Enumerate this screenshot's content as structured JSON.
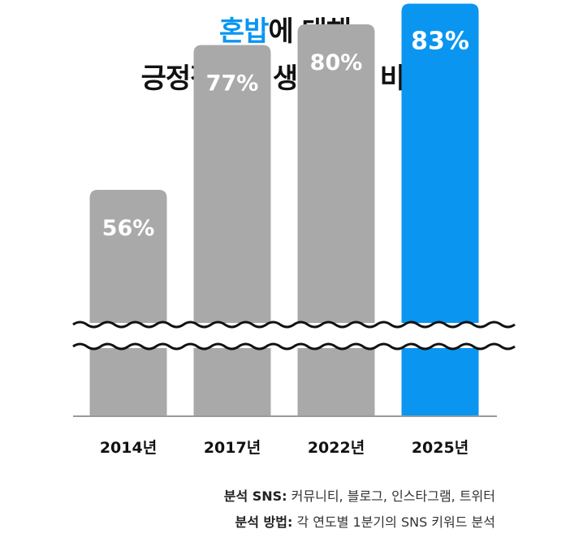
{
  "title": {
    "line1_highlight": "혼밥",
    "line1_rest": "에 대해",
    "line2": "긍정적으로 생각하는 비율"
  },
  "colors": {
    "accent": "#0a96f0",
    "bar_default": "#a9a9a9",
    "bar_highlight": "#0a96f0"
  },
  "chart_data": {
    "type": "bar",
    "categories": [
      "2014년",
      "2017년",
      "2022년",
      "2025년"
    ],
    "values": [
      56,
      77,
      80,
      83
    ],
    "value_labels": [
      "56%",
      "77%",
      "80%",
      "83%"
    ],
    "highlight_index": 3,
    "axis_break": true,
    "title": "혼밥에 대해 긍정적으로 생각하는 비율"
  },
  "footnotes": {
    "sns_label": "분석 SNS:",
    "sns_value": " 커뮤니티, 블로그, 인스타그램, 트위터",
    "method_label": "분석 방법:",
    "method_value": " 각 연도별 1분기의 SNS 키워드 분석"
  }
}
